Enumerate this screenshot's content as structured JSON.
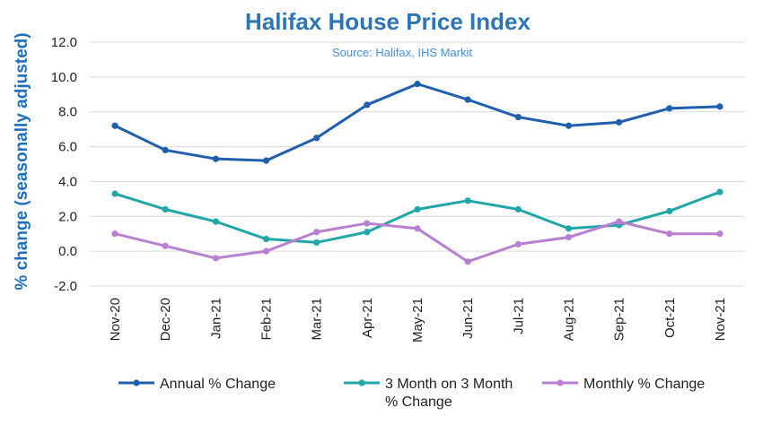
{
  "chart_data": {
    "type": "line",
    "title": "Halifax House Price Index",
    "subtitle": "Source: Halifax, IHS Markit",
    "xlabel": "",
    "ylabel": "% change (seasonally adjusted)",
    "ylim": [
      -2.0,
      12.0
    ],
    "yticks": [
      "12.0",
      "10.0",
      "8.0",
      "6.0",
      "4.0",
      "2.0",
      "0.0",
      "-2.0"
    ],
    "categories": [
      "Nov-20",
      "Dec-20",
      "Jan-21",
      "Feb-21",
      "Mar-21",
      "Apr-21",
      "May-21",
      "Jun-21",
      "Jul-21",
      "Aug-21",
      "Sep-21",
      "Oct-21",
      "Nov-21"
    ],
    "grid": "horizontal",
    "legend_position": "bottom",
    "series": [
      {
        "name": "Annual % Change",
        "color": "#1f5fae",
        "values": [
          7.2,
          5.8,
          5.3,
          5.2,
          6.5,
          8.4,
          9.6,
          8.7,
          7.7,
          7.2,
          7.4,
          8.2,
          8.3
        ]
      },
      {
        "name": "3 Month on 3 Month % Change",
        "label_lines": [
          "3 Month on 3 Month",
          "% Change"
        ],
        "color": "#21a7a9",
        "values": [
          3.3,
          2.4,
          1.7,
          0.7,
          0.5,
          1.1,
          2.4,
          2.9,
          2.4,
          1.3,
          1.5,
          2.3,
          3.4
        ]
      },
      {
        "name": "Monthly % Change",
        "color": "#b97fd0",
        "values": [
          1.0,
          0.3,
          -0.4,
          0.0,
          1.1,
          1.6,
          1.3,
          -0.6,
          0.4,
          0.8,
          1.7,
          1.0,
          1.0
        ]
      }
    ]
  }
}
